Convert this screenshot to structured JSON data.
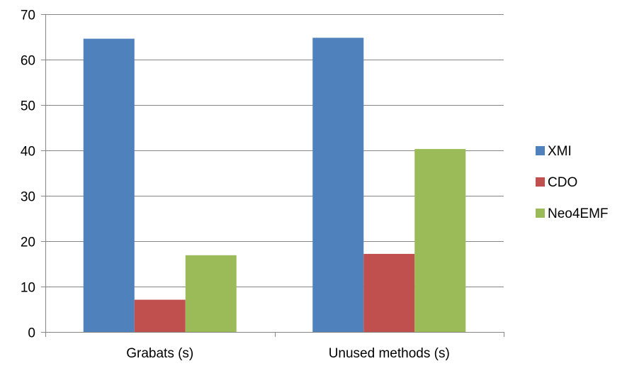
{
  "chart_data": {
    "type": "bar",
    "categories": [
      "Grabats (s)",
      "Unused methods (s)"
    ],
    "series": [
      {
        "name": "XMI",
        "color": "#4F81BD",
        "values": [
          64.6,
          64.8
        ]
      },
      {
        "name": "CDO",
        "color": "#C0504D",
        "values": [
          7.1,
          17.2
        ]
      },
      {
        "name": "Neo4EMF",
        "color": "#9BBB59",
        "values": [
          16.9,
          40.3
        ]
      }
    ],
    "title": "",
    "xlabel": "",
    "ylabel": "",
    "ylim": [
      0,
      70
    ],
    "yticks": [
      0,
      10,
      20,
      30,
      40,
      50,
      60,
      70
    ],
    "grid": true,
    "legend": "right"
  }
}
